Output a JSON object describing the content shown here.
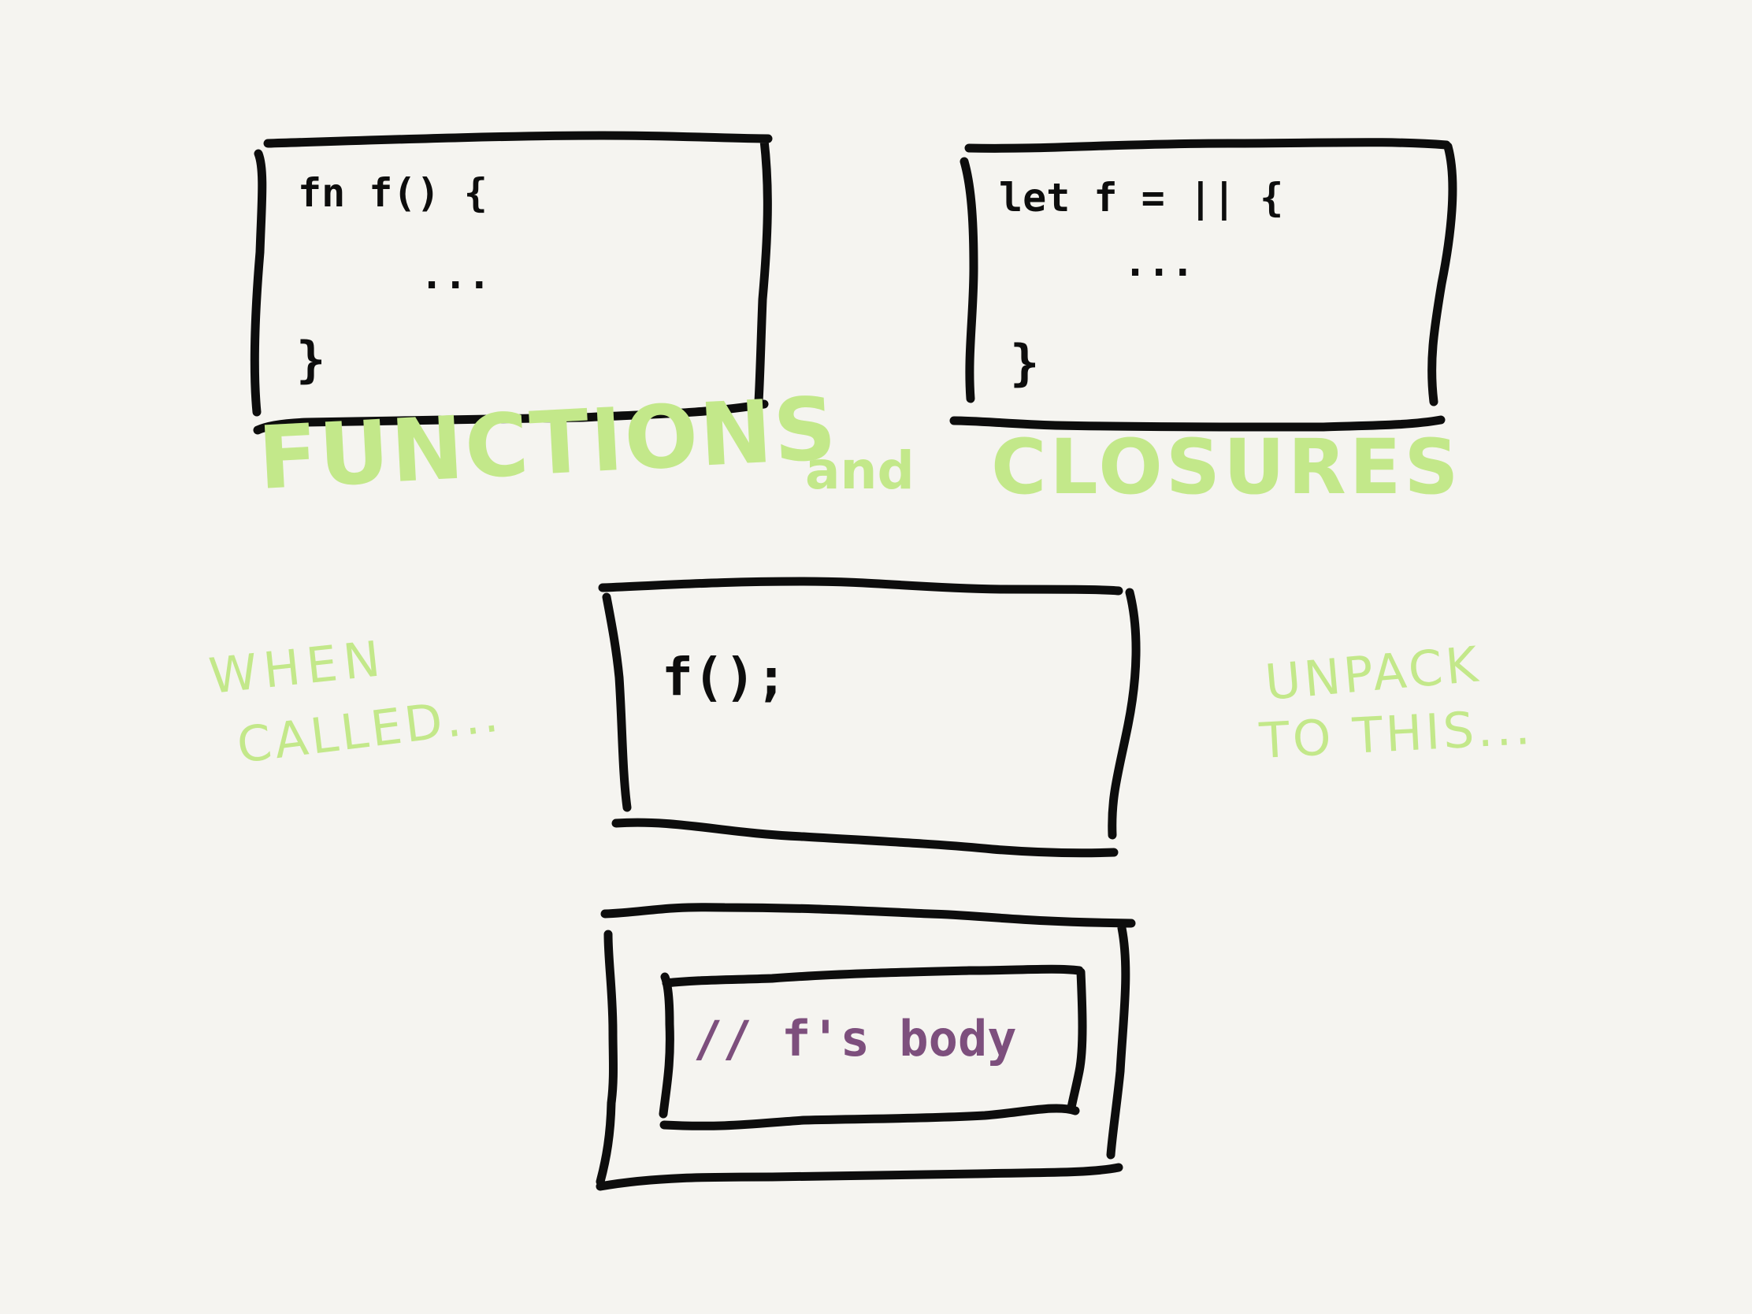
{
  "boxes": {
    "function_definition": {
      "line1": "fn  f()   {",
      "line2": "...",
      "line3": "}"
    },
    "closure_definition": {
      "line1": "let f = ||  {",
      "line2": "...",
      "line3": "}"
    },
    "call": {
      "line1": "f();"
    },
    "inlined": {
      "comment": "// f's  body"
    }
  },
  "title": {
    "left": "FUNCTIONS",
    "middle": "and",
    "right": "CLOSURES"
  },
  "notes": {
    "when_called_line1": "WHEN",
    "when_called_line2": "CALLED...",
    "unpack_line1": "UNPACK",
    "unpack_line2": "TO  THIS..."
  },
  "colors": {
    "background": "#f5f4f0",
    "ink": "#0d0d0d",
    "accent_green": "#c3e88a",
    "comment_purple": "#7d4f7d"
  }
}
